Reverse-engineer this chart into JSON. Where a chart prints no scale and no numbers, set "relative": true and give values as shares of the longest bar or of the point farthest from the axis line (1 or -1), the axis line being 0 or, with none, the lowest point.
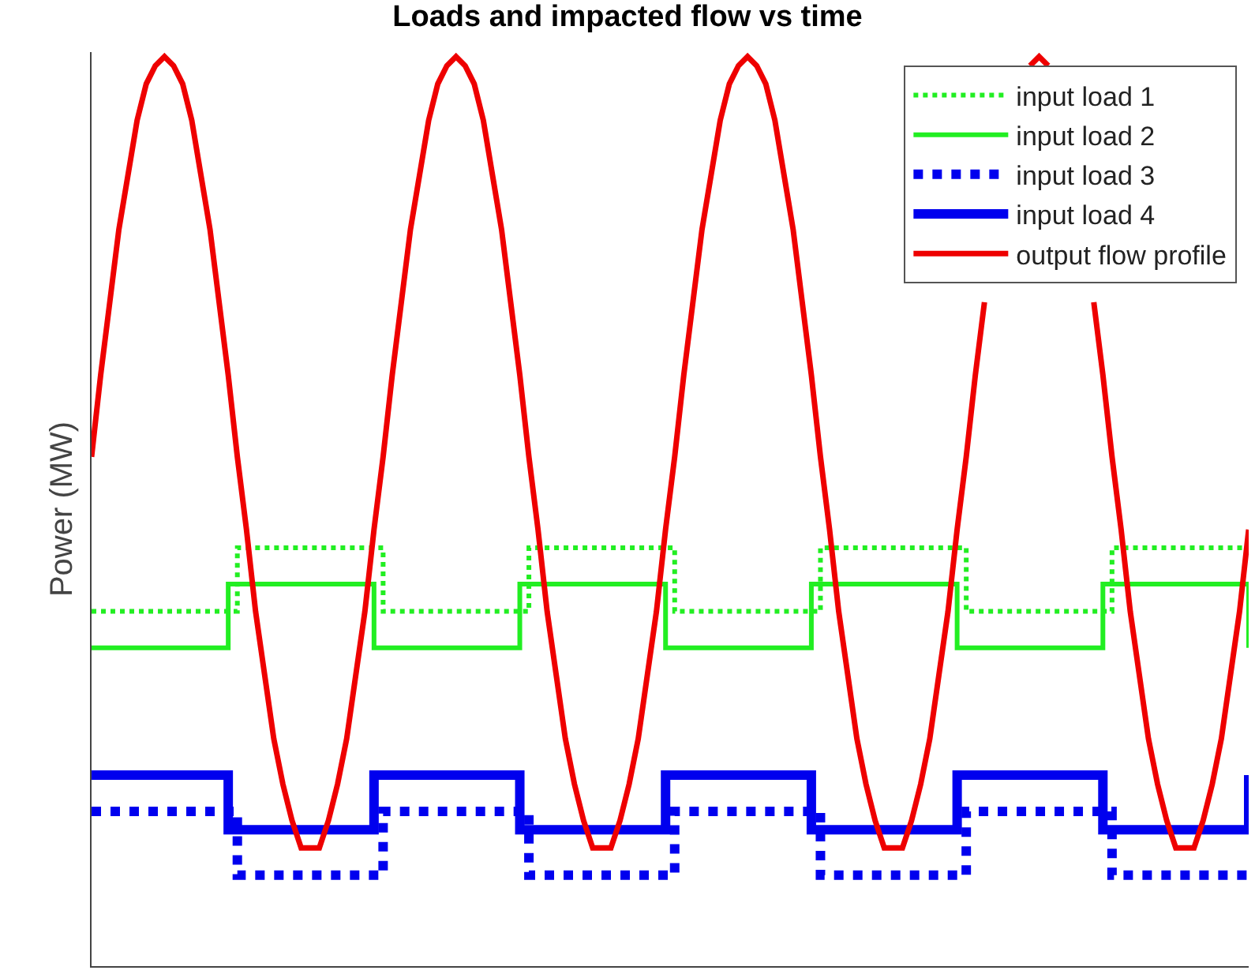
{
  "chart_data": {
    "type": "line",
    "title": "Loads and impacted flow vs time",
    "ylabel": "Power (MW)",
    "relative": true,
    "legend": "top right",
    "marker": "none",
    "categories": [
      null,
      null,
      null,
      null,
      null,
      null,
      null,
      null,
      null,
      null,
      null,
      null,
      null,
      null,
      null,
      null,
      null,
      null,
      null,
      null,
      null,
      null,
      null,
      null,
      null,
      null,
      null,
      null,
      null,
      null,
      null,
      null,
      null,
      null,
      null,
      null,
      null,
      null,
      null,
      null,
      null,
      null,
      null,
      null,
      null,
      null,
      null,
      null,
      null,
      null,
      null,
      null,
      null,
      null,
      null,
      null,
      null,
      null,
      null,
      null,
      null,
      null,
      null,
      null,
      null,
      null,
      null,
      null,
      null,
      null,
      null,
      null,
      null,
      null,
      null,
      null,
      null,
      null,
      null,
      null,
      null,
      null,
      null,
      null,
      null,
      null,
      null,
      null,
      null,
      null,
      null,
      null,
      null,
      null,
      null,
      null,
      null,
      null,
      null,
      null,
      null,
      null,
      null,
      null,
      null,
      null,
      null,
      null,
      null,
      null,
      null,
      null,
      null,
      null,
      null,
      null,
      null,
      null,
      null,
      null,
      null,
      null,
      null,
      null,
      null,
      null,
      null,
      null
    ],
    "series": [
      {
        "name": "input load 1",
        "type": "step",
        "color": "#22ee22",
        "line_style": "dotted",
        "values": [
          0.39,
          0.39,
          0.39,
          0.39,
          0.39,
          0.39,
          0.39,
          0.39,
          0.39,
          0.39,
          0.39,
          0.39,
          0.39,
          0.39,
          0.39,
          0.39,
          0.46,
          0.46,
          0.46,
          0.46,
          0.46,
          0.46,
          0.46,
          0.46,
          0.46,
          0.46,
          0.46,
          0.46,
          0.46,
          0.46,
          0.46,
          0.46,
          0.39,
          0.39,
          0.39,
          0.39,
          0.39,
          0.39,
          0.39,
          0.39,
          0.39,
          0.39,
          0.39,
          0.39,
          0.39,
          0.39,
          0.39,
          0.39,
          0.46,
          0.46,
          0.46,
          0.46,
          0.46,
          0.46,
          0.46,
          0.46,
          0.46,
          0.46,
          0.46,
          0.46,
          0.46,
          0.46,
          0.46,
          0.46,
          0.39,
          0.39,
          0.39,
          0.39,
          0.39,
          0.39,
          0.39,
          0.39,
          0.39,
          0.39,
          0.39,
          0.39,
          0.39,
          0.39,
          0.39,
          0.39,
          0.46,
          0.46,
          0.46,
          0.46,
          0.46,
          0.46,
          0.46,
          0.46,
          0.46,
          0.46,
          0.46,
          0.46,
          0.46,
          0.46,
          0.46,
          0.46,
          0.39,
          0.39,
          0.39,
          0.39,
          0.39,
          0.39,
          0.39,
          0.39,
          0.39,
          0.39,
          0.39,
          0.39,
          0.39,
          0.39,
          0.39,
          0.39,
          0.46,
          0.46,
          0.46,
          0.46,
          0.46,
          0.46,
          0.46,
          0.46,
          0.46,
          0.46,
          0.46,
          0.46,
          0.46,
          0.46,
          0.46,
          0.46
        ]
      },
      {
        "name": "input load 2",
        "type": "step",
        "color": "#22ee22",
        "line_style": "solid",
        "values": [
          0.35,
          0.35,
          0.35,
          0.35,
          0.35,
          0.35,
          0.35,
          0.35,
          0.35,
          0.35,
          0.35,
          0.35,
          0.35,
          0.35,
          0.35,
          0.42,
          0.42,
          0.42,
          0.42,
          0.42,
          0.42,
          0.42,
          0.42,
          0.42,
          0.42,
          0.42,
          0.42,
          0.42,
          0.42,
          0.42,
          0.42,
          0.35,
          0.35,
          0.35,
          0.35,
          0.35,
          0.35,
          0.35,
          0.35,
          0.35,
          0.35,
          0.35,
          0.35,
          0.35,
          0.35,
          0.35,
          0.35,
          0.42,
          0.42,
          0.42,
          0.42,
          0.42,
          0.42,
          0.42,
          0.42,
          0.42,
          0.42,
          0.42,
          0.42,
          0.42,
          0.42,
          0.42,
          0.42,
          0.35,
          0.35,
          0.35,
          0.35,
          0.35,
          0.35,
          0.35,
          0.35,
          0.35,
          0.35,
          0.35,
          0.35,
          0.35,
          0.35,
          0.35,
          0.35,
          0.42,
          0.42,
          0.42,
          0.42,
          0.42,
          0.42,
          0.42,
          0.42,
          0.42,
          0.42,
          0.42,
          0.42,
          0.42,
          0.42,
          0.42,
          0.42,
          0.35,
          0.35,
          0.35,
          0.35,
          0.35,
          0.35,
          0.35,
          0.35,
          0.35,
          0.35,
          0.35,
          0.35,
          0.35,
          0.35,
          0.35,
          0.35,
          0.42,
          0.42,
          0.42,
          0.42,
          0.42,
          0.42,
          0.42,
          0.42,
          0.42,
          0.42,
          0.42,
          0.42,
          0.42,
          0.42,
          0.42,
          0.42,
          0.35
        ]
      },
      {
        "name": "input load 3",
        "type": "step",
        "color": "#0000ee",
        "line_style": "dotted",
        "values": [
          0.17,
          0.17,
          0.17,
          0.17,
          0.17,
          0.17,
          0.17,
          0.17,
          0.17,
          0.17,
          0.17,
          0.17,
          0.17,
          0.17,
          0.17,
          0.17,
          0.1,
          0.1,
          0.1,
          0.1,
          0.1,
          0.1,
          0.1,
          0.1,
          0.1,
          0.1,
          0.1,
          0.1,
          0.1,
          0.1,
          0.1,
          0.1,
          0.17,
          0.17,
          0.17,
          0.17,
          0.17,
          0.17,
          0.17,
          0.17,
          0.17,
          0.17,
          0.17,
          0.17,
          0.17,
          0.17,
          0.17,
          0.17,
          0.1,
          0.1,
          0.1,
          0.1,
          0.1,
          0.1,
          0.1,
          0.1,
          0.1,
          0.1,
          0.1,
          0.1,
          0.1,
          0.1,
          0.1,
          0.1,
          0.17,
          0.17,
          0.17,
          0.17,
          0.17,
          0.17,
          0.17,
          0.17,
          0.17,
          0.17,
          0.17,
          0.17,
          0.17,
          0.17,
          0.17,
          0.17,
          0.1,
          0.1,
          0.1,
          0.1,
          0.1,
          0.1,
          0.1,
          0.1,
          0.1,
          0.1,
          0.1,
          0.1,
          0.1,
          0.1,
          0.1,
          0.1,
          0.17,
          0.17,
          0.17,
          0.17,
          0.17,
          0.17,
          0.17,
          0.17,
          0.17,
          0.17,
          0.17,
          0.17,
          0.17,
          0.17,
          0.17,
          0.17,
          0.1,
          0.1,
          0.1,
          0.1,
          0.1,
          0.1,
          0.1,
          0.1,
          0.1,
          0.1,
          0.1,
          0.1,
          0.1,
          0.1,
          0.1,
          0.1
        ]
      },
      {
        "name": "input load 4",
        "type": "step",
        "color": "#0000ee",
        "line_style": "solid",
        "values": [
          0.21,
          0.21,
          0.21,
          0.21,
          0.21,
          0.21,
          0.21,
          0.21,
          0.21,
          0.21,
          0.21,
          0.21,
          0.21,
          0.21,
          0.21,
          0.15,
          0.15,
          0.15,
          0.15,
          0.15,
          0.15,
          0.15,
          0.15,
          0.15,
          0.15,
          0.15,
          0.15,
          0.15,
          0.15,
          0.15,
          0.15,
          0.21,
          0.21,
          0.21,
          0.21,
          0.21,
          0.21,
          0.21,
          0.21,
          0.21,
          0.21,
          0.21,
          0.21,
          0.21,
          0.21,
          0.21,
          0.21,
          0.15,
          0.15,
          0.15,
          0.15,
          0.15,
          0.15,
          0.15,
          0.15,
          0.15,
          0.15,
          0.15,
          0.15,
          0.15,
          0.15,
          0.15,
          0.15,
          0.21,
          0.21,
          0.21,
          0.21,
          0.21,
          0.21,
          0.21,
          0.21,
          0.21,
          0.21,
          0.21,
          0.21,
          0.21,
          0.21,
          0.21,
          0.21,
          0.15,
          0.15,
          0.15,
          0.15,
          0.15,
          0.15,
          0.15,
          0.15,
          0.15,
          0.15,
          0.15,
          0.15,
          0.15,
          0.15,
          0.15,
          0.15,
          0.21,
          0.21,
          0.21,
          0.21,
          0.21,
          0.21,
          0.21,
          0.21,
          0.21,
          0.21,
          0.21,
          0.21,
          0.21,
          0.21,
          0.21,
          0.21,
          0.15,
          0.15,
          0.15,
          0.15,
          0.15,
          0.15,
          0.15,
          0.15,
          0.15,
          0.15,
          0.15,
          0.15,
          0.15,
          0.15,
          0.15,
          0.15,
          0.21
        ]
      },
      {
        "name": "output flow profile",
        "type": "line",
        "color": "#ee0000",
        "line_style": "solid",
        "values": [
          0.56,
          0.65,
          0.73,
          0.81,
          0.87,
          0.93,
          0.97,
          0.99,
          1.0,
          0.99,
          0.97,
          0.93,
          0.87,
          0.81,
          0.73,
          0.65,
          0.56,
          0.48,
          0.39,
          0.32,
          0.25,
          0.2,
          0.16,
          0.13,
          0.13,
          0.13,
          0.16,
          0.2,
          0.25,
          0.32,
          0.39,
          0.48,
          0.56,
          0.65,
          0.73,
          0.81,
          0.87,
          0.93,
          0.97,
          0.99,
          1.0,
          0.99,
          0.97,
          0.93,
          0.87,
          0.81,
          0.73,
          0.65,
          0.56,
          0.48,
          0.39,
          0.32,
          0.25,
          0.2,
          0.16,
          0.13,
          0.13,
          0.13,
          0.16,
          0.2,
          0.25,
          0.32,
          0.39,
          0.48,
          0.56,
          0.65,
          0.73,
          0.81,
          0.87,
          0.93,
          0.97,
          0.99,
          1.0,
          0.99,
          0.97,
          0.93,
          0.87,
          0.81,
          0.73,
          0.65,
          0.56,
          0.48,
          0.39,
          0.32,
          0.25,
          0.2,
          0.16,
          0.13,
          0.13,
          0.13,
          0.16,
          0.2,
          0.25,
          0.32,
          0.39,
          0.48,
          0.56,
          0.65,
          0.73,
          null,
          null,
          null,
          null,
          0.99,
          1.0,
          0.99,
          null,
          null,
          null,
          null,
          0.73,
          0.65,
          0.56,
          0.48,
          0.39,
          0.32,
          0.25,
          0.2,
          0.16,
          0.13,
          0.13,
          0.13,
          0.16,
          0.2,
          0.25,
          0.32,
          0.39,
          0.48
        ]
      }
    ]
  }
}
